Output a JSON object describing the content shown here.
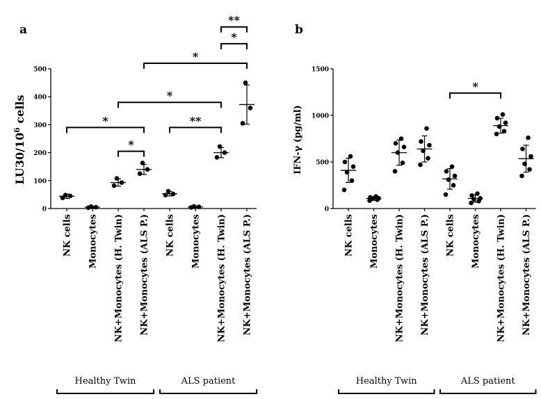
{
  "chart_data": [
    {
      "type": "scatter",
      "panel_label": "a",
      "ylabel": "LU30/10",
      "ylabel_sup": "6",
      "ylabel_suffix": " cells",
      "ylim": [
        0,
        500
      ],
      "yticks": [
        0,
        100,
        200,
        300,
        400,
        500
      ],
      "categories": [
        "NK cells",
        "Monocytes",
        "NK+Monocytes (H. Twin)",
        "NK+Monocytes (ALS P.)",
        "NK cells",
        "Monocytes",
        "NK+Monocytes (H. Twin)",
        "NK+Monocytes (ALS P.)"
      ],
      "groups": [
        {
          "label": "Healthy Twin",
          "from": 0,
          "to": 3
        },
        {
          "label": "ALS patient",
          "from": 4,
          "to": 7
        }
      ],
      "points": [
        [
          38,
          45,
          48
        ],
        [
          3,
          5,
          7
        ],
        [
          82,
          93,
          108
        ],
        [
          125,
          140,
          163
        ],
        [
          48,
          52,
          62
        ],
        [
          4,
          6,
          8
        ],
        [
          183,
          200,
          222
        ],
        [
          305,
          360,
          450
        ]
      ],
      "mean": [
        44,
        5,
        93,
        140,
        53,
        6,
        200,
        372
      ],
      "sd": [
        8,
        2,
        13,
        18,
        8,
        2,
        18,
        70
      ],
      "significance": [
        {
          "from": 6,
          "to": 7,
          "y": 650,
          "label": "**"
        },
        {
          "from": 6,
          "to": 7,
          "y": 590,
          "label": "*"
        },
        {
          "from": 3,
          "to": 7,
          "y": 520,
          "label": "*"
        },
        {
          "from": 2,
          "to": 6,
          "y": 380,
          "label": "*"
        },
        {
          "from": 4,
          "to": 6,
          "y": 290,
          "label": "**"
        },
        {
          "from": 0,
          "to": 3,
          "y": 290,
          "label": "*"
        },
        {
          "from": 2,
          "to": 3,
          "y": 205,
          "label": "*"
        }
      ]
    },
    {
      "type": "scatter",
      "panel_label": "b",
      "ylabel": "IFN-γ (pg/ml)",
      "ylim": [
        0,
        1500
      ],
      "yticks": [
        0,
        500,
        1000,
        1500
      ],
      "categories": [
        "NK cells",
        "Monocytes",
        "NK+Monocytes (H. Twin)",
        "NK+Monocytes (ALS P.)",
        "NK cells",
        "Monocytes",
        "NK+Monocytes (H. Twin)",
        "NK+Monocytes (ALS P.)"
      ],
      "groups": [
        {
          "label": "Healthy Twin",
          "from": 0,
          "to": 3
        },
        {
          "label": "ALS patient",
          "from": 4,
          "to": 7
        }
      ],
      "points": [
        [
          200,
          300,
          390,
          450,
          500,
          560
        ],
        [
          85,
          95,
          105,
          110,
          120,
          130
        ],
        [
          400,
          490,
          600,
          660,
          700,
          750
        ],
        [
          470,
          540,
          620,
          680,
          720,
          860
        ],
        [
          150,
          250,
          310,
          350,
          400,
          450
        ],
        [
          60,
          80,
          100,
          110,
          140,
          160
        ],
        [
          800,
          830,
          880,
          920,
          970,
          1010
        ],
        [
          350,
          420,
          480,
          560,
          640,
          760
        ]
      ],
      "mean": [
        410,
        108,
        600,
        640,
        318,
        108,
        890,
        535
      ],
      "sd": [
        130,
        20,
        135,
        140,
        110,
        40,
        80,
        145
      ],
      "significance": [
        {
          "from": 4,
          "to": 6,
          "y": 1240,
          "label": "*"
        }
      ]
    }
  ]
}
